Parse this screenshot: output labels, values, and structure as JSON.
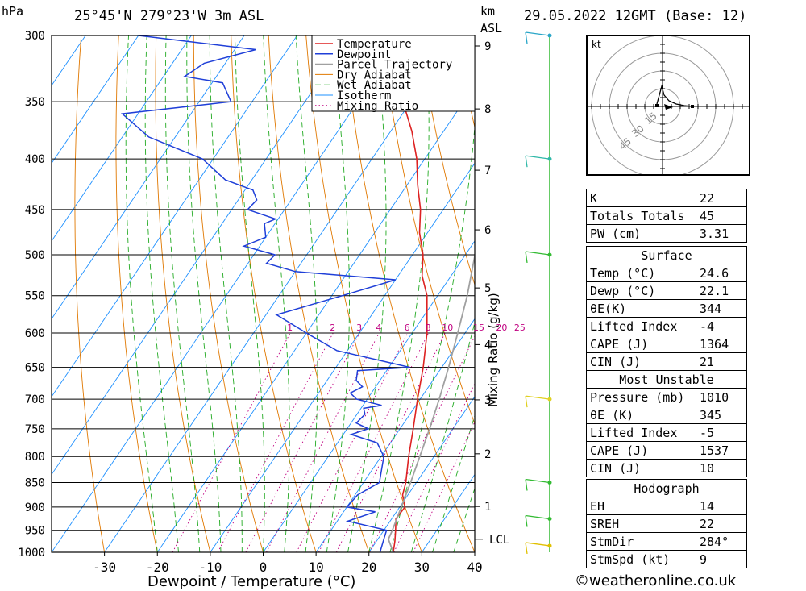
{
  "header": {
    "hpa_unit": "hPa",
    "location": "25°45'N 279°23'W 3m ASL",
    "km_unit": "km",
    "asl_unit": "ASL",
    "datetime": "29.05.2022 12GMT (Base: 12)"
  },
  "chart_data": {
    "type": "skew-t",
    "xlabel": "Dewpoint / Temperature (°C)",
    "ylabel_right": "Mixing Ratio (g/kg)",
    "temperature_ticks": [
      -30,
      -20,
      -10,
      0,
      10,
      20,
      30,
      40
    ],
    "pressure_levels": [
      300,
      350,
      400,
      450,
      500,
      550,
      600,
      650,
      700,
      750,
      800,
      850,
      900,
      950,
      1000
    ],
    "xlim": [
      -40,
      40
    ],
    "ylim_pressure": [
      1000,
      300
    ],
    "altitude_ticks_km": [
      1,
      2,
      3,
      4,
      5,
      6,
      7,
      8,
      9
    ],
    "lcl_label": "LCL",
    "lcl_pressure": 970,
    "mixing_ratio_labels": [
      "1",
      "2",
      "3",
      "4",
      "6",
      "8",
      "10",
      "15",
      "20",
      "25"
    ],
    "legend": [
      "Temperature",
      "Dewpoint",
      "Parcel Trajectory",
      "Dry Adiabat",
      "Wet Adiabat",
      "Isotherm",
      "Mixing Ratio"
    ],
    "colors": {
      "temperature": "#dd2222",
      "dewpoint": "#1f3fd8",
      "parcel": "#a0a0a0",
      "dry_adiabat": "#e07800",
      "wet_adiabat": "#22aa22",
      "isotherm": "#1e90ff",
      "mixing_ratio": "#c00080"
    },
    "series": [
      {
        "name": "Temperature",
        "points": [
          [
            1000,
            24.6
          ],
          [
            975,
            23.5
          ],
          [
            950,
            22.2
          ],
          [
            925,
            20.8
          ],
          [
            900,
            21.0
          ],
          [
            875,
            19.0
          ],
          [
            850,
            18.0
          ],
          [
            800,
            15.2
          ],
          [
            750,
            12.5
          ],
          [
            700,
            9.5
          ],
          [
            650,
            6.5
          ],
          [
            600,
            2.8
          ],
          [
            550,
            -2.0
          ],
          [
            525,
            -5.5
          ],
          [
            500,
            -8.0
          ],
          [
            475,
            -11.5
          ],
          [
            450,
            -14.3
          ],
          [
            425,
            -18.0
          ],
          [
            400,
            -21.5
          ],
          [
            375,
            -26.0
          ],
          [
            350,
            -31.5
          ],
          [
            325,
            -37.5
          ],
          [
            300,
            -43.5
          ]
        ]
      },
      {
        "name": "Dewpoint",
        "points": [
          [
            1000,
            22.1
          ],
          [
            975,
            21.3
          ],
          [
            950,
            20.5
          ],
          [
            930,
            12.0
          ],
          [
            910,
            16.0
          ],
          [
            900,
            10.0
          ],
          [
            875,
            10.5
          ],
          [
            850,
            13.0
          ],
          [
            800,
            10.5
          ],
          [
            775,
            7.5
          ],
          [
            760,
            1.5
          ],
          [
            750,
            4.0
          ],
          [
            740,
            1.0
          ],
          [
            725,
            1.5
          ],
          [
            715,
            0.5
          ],
          [
            710,
            3.5
          ],
          [
            700,
            -2.0
          ],
          [
            690,
            -4.0
          ],
          [
            680,
            -2.5
          ],
          [
            670,
            -4.5
          ],
          [
            655,
            -5.5
          ],
          [
            650,
            4.0
          ],
          [
            625,
            -12.0
          ],
          [
            600,
            -20.0
          ],
          [
            575,
            -28.0
          ],
          [
            550,
            -18.0
          ],
          [
            530,
            -10.0
          ],
          [
            520,
            -30.0
          ],
          [
            510,
            -36.5
          ],
          [
            500,
            -36.0
          ],
          [
            490,
            -43.0
          ],
          [
            480,
            -40.0
          ],
          [
            465,
            -42.0
          ],
          [
            460,
            -40.5
          ],
          [
            450,
            -47.0
          ],
          [
            440,
            -46.5
          ],
          [
            430,
            -48.5
          ],
          [
            420,
            -55.0
          ],
          [
            400,
            -62.0
          ],
          [
            380,
            -75.0
          ],
          [
            360,
            -83.0
          ],
          [
            350,
            -64.0
          ],
          [
            335,
            -68.0
          ],
          [
            330,
            -76.0
          ],
          [
            320,
            -74.0
          ],
          [
            310,
            -66.0
          ],
          [
            300,
            -90.0
          ]
        ]
      },
      {
        "name": "Parcel Trajectory",
        "points": [
          [
            1000,
            24.6
          ],
          [
            970,
            22.0
          ],
          [
            950,
            21.6
          ],
          [
            900,
            20.3
          ],
          [
            850,
            18.9
          ],
          [
            800,
            17.3
          ],
          [
            750,
            15.6
          ],
          [
            700,
            13.6
          ],
          [
            650,
            11.3
          ],
          [
            600,
            8.6
          ],
          [
            550,
            5.6
          ],
          [
            500,
            1.8
          ],
          [
            450,
            -2.7
          ],
          [
            400,
            -8.3
          ],
          [
            370,
            -12.3
          ]
        ]
      }
    ]
  },
  "hodograph": {
    "unit": "kt",
    "ring_labels": [
      "15",
      "30",
      "45"
    ]
  },
  "indices": [
    {
      "label": "K",
      "value": "22"
    },
    {
      "label": "Totals Totals",
      "value": "45"
    },
    {
      "label": "PW (cm)",
      "value": "3.31"
    }
  ],
  "surface": {
    "title": "Surface",
    "rows": [
      {
        "label": "Temp (°C)",
        "value": "24.6"
      },
      {
        "label": "Dewp (°C)",
        "value": "22.1"
      },
      {
        "label": "θE(K)",
        "value": "344"
      },
      {
        "label": "Lifted Index",
        "value": "-4"
      },
      {
        "label": "CAPE (J)",
        "value": "1364"
      },
      {
        "label": "CIN (J)",
        "value": "21"
      }
    ]
  },
  "most_unstable": {
    "title": "Most Unstable",
    "rows": [
      {
        "label": "Pressure (mb)",
        "value": "1010"
      },
      {
        "label": "θE (K)",
        "value": "345"
      },
      {
        "label": "Lifted Index",
        "value": "-5"
      },
      {
        "label": "CAPE (J)",
        "value": "1537"
      },
      {
        "label": "CIN (J)",
        "value": "10"
      }
    ]
  },
  "hodograph_table": {
    "title": "Hodograph",
    "rows": [
      {
        "label": "EH",
        "value": "14"
      },
      {
        "label": "SREH",
        "value": "22"
      },
      {
        "label": "StmDir",
        "value": "284°"
      },
      {
        "label": "StmSpd (kt)",
        "value": "9"
      }
    ]
  },
  "copyright": "©weatheronline.co.uk"
}
